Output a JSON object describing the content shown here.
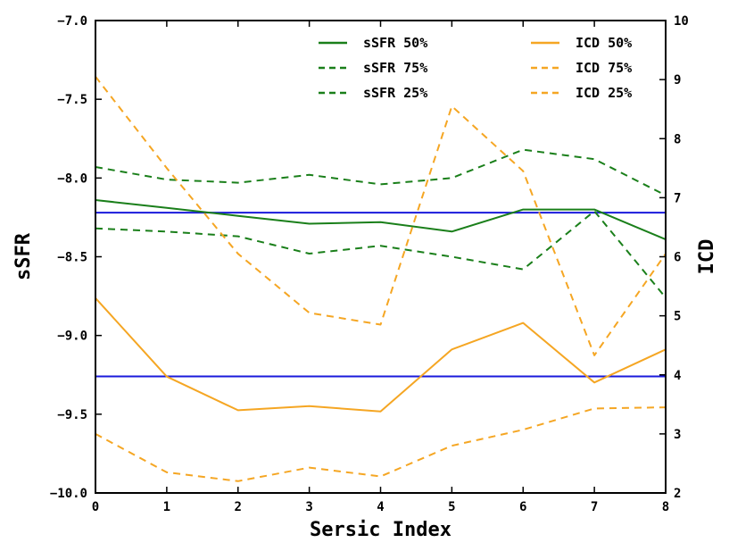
{
  "chart_data": {
    "type": "line",
    "title": "",
    "xlabel": "Sersic Index",
    "ylabel_left": "sSFR",
    "ylabel_right": "ICD",
    "xlim": [
      0,
      8
    ],
    "ylim_left": [
      -10.0,
      -7.0
    ],
    "ylim_right": [
      2,
      10
    ],
    "x_ticks": [
      0,
      1,
      2,
      3,
      4,
      5,
      6,
      7,
      8
    ],
    "x_tick_labels": [
      "0",
      "1",
      "2",
      "3",
      "4",
      "5",
      "6",
      "7",
      "8"
    ],
    "left_ticks": [
      -10.0,
      -9.5,
      -9.0,
      -8.5,
      -8.0,
      -7.5,
      -7.0
    ],
    "left_tick_labels": [
      "−10.0",
      "−9.5",
      "−9.0",
      "−8.5",
      "−8.0",
      "−7.5",
      "−7.0"
    ],
    "right_ticks": [
      2,
      3,
      4,
      5,
      6,
      7,
      8,
      9,
      10
    ],
    "right_tick_labels": [
      "2",
      "3",
      "4",
      "5",
      "6",
      "7",
      "8",
      "9",
      "10"
    ],
    "grid": false,
    "legend_placement": "top",
    "x": [
      0,
      1,
      2,
      3,
      4,
      5,
      6,
      7,
      8
    ],
    "series": [
      {
        "name": "sSFR 50%",
        "axis": "left",
        "color": "#1a7f1a",
        "style": "solid",
        "values": [
          -8.14,
          -8.19,
          -8.24,
          -8.29,
          -8.28,
          -8.34,
          -8.2,
          -8.2,
          -8.39
        ]
      },
      {
        "name": "sSFR 75%",
        "axis": "left",
        "color": "#1a7f1a",
        "style": "dashed",
        "values": [
          -7.93,
          -8.01,
          -8.03,
          -7.98,
          -8.04,
          -8.0,
          -7.82,
          -7.88,
          -8.11
        ]
      },
      {
        "name": "sSFR 25%",
        "axis": "left",
        "color": "#1a7f1a",
        "style": "dashed",
        "values": [
          -8.32,
          -8.34,
          -8.37,
          -8.48,
          -8.43,
          -8.5,
          -8.58,
          -8.21,
          -8.76
        ]
      },
      {
        "name": "ICD 50%",
        "axis": "right",
        "color": "#f5a623",
        "style": "solid",
        "values": [
          5.3,
          3.97,
          3.4,
          3.47,
          3.38,
          4.43,
          4.88,
          3.87,
          4.43
        ]
      },
      {
        "name": "ICD 75%",
        "axis": "right",
        "color": "#f5a623",
        "style": "dashed",
        "values": [
          9.05,
          7.5,
          6.05,
          5.05,
          4.85,
          8.55,
          7.45,
          4.33,
          6.05
        ]
      },
      {
        "name": "ICD 25%",
        "axis": "right",
        "color": "#f5a623",
        "style": "dashed",
        "values": [
          3.0,
          2.35,
          2.2,
          2.43,
          2.28,
          2.8,
          3.07,
          3.43,
          3.45
        ]
      }
    ],
    "reference_lines": [
      {
        "axis": "left",
        "value": -8.22,
        "color": "#1a1adb"
      },
      {
        "axis": "left",
        "value": -9.26,
        "color": "#1a1adb"
      }
    ]
  }
}
